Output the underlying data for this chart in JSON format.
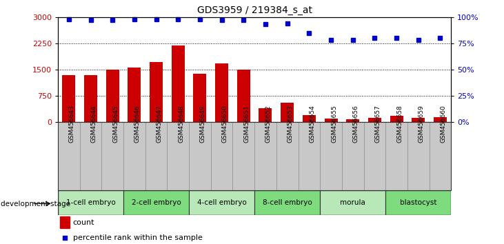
{
  "title": "GDS3959 / 219384_s_at",
  "samples": [
    "GSM456643",
    "GSM456644",
    "GSM456645",
    "GSM456646",
    "GSM456647",
    "GSM456648",
    "GSM456649",
    "GSM456650",
    "GSM456651",
    "GSM456652",
    "GSM456653",
    "GSM456654",
    "GSM456655",
    "GSM456656",
    "GSM456657",
    "GSM456658",
    "GSM456659",
    "GSM456660"
  ],
  "counts": [
    1350,
    1350,
    1490,
    1550,
    1720,
    2180,
    1380,
    1680,
    1490,
    390,
    560,
    200,
    90,
    80,
    110,
    170,
    120,
    130
  ],
  "percentile": [
    98,
    97,
    97,
    98,
    98,
    98,
    98,
    97,
    97,
    93,
    94,
    85,
    78,
    78,
    80,
    80,
    78,
    80
  ],
  "stages": [
    {
      "label": "1-cell embryo",
      "start": 0,
      "end": 3
    },
    {
      "label": "2-cell embryo",
      "start": 3,
      "end": 6
    },
    {
      "label": "4-cell embryo",
      "start": 6,
      "end": 9
    },
    {
      "label": "8-cell embryo",
      "start": 9,
      "end": 12
    },
    {
      "label": "morula",
      "start": 12,
      "end": 15
    },
    {
      "label": "blastocyst",
      "start": 15,
      "end": 18
    }
  ],
  "stage_colors": [
    "#b8e8b8",
    "#7edb7e"
  ],
  "bar_color": "#cc0000",
  "dot_color": "#0000cc",
  "ylim_left": [
    0,
    3000
  ],
  "ylim_right": [
    0,
    100
  ],
  "yticks_left": [
    0,
    750,
    1500,
    2250,
    3000
  ],
  "yticks_right": [
    0,
    25,
    50,
    75,
    100
  ],
  "plot_bg": "#ffffff",
  "sample_bg": "#c8c8c8",
  "legend_count_color": "#cc0000",
  "legend_dot_color": "#0000cc"
}
